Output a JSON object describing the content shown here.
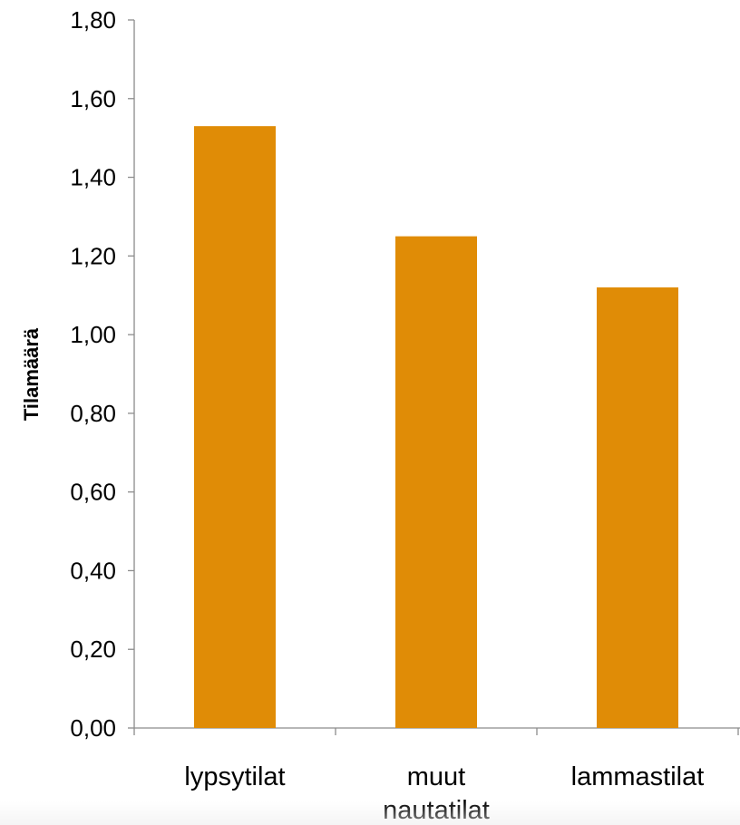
{
  "chart_data": {
    "type": "bar",
    "ylabel": "Tilamäärä",
    "xlabel": "",
    "categories": [
      "lypsytilat",
      "muut nautatilat",
      "lammastilat"
    ],
    "category_lines": [
      [
        "lypsytilat"
      ],
      [
        "muut",
        "nautatilat"
      ],
      [
        "lammastilat"
      ]
    ],
    "values": [
      1.53,
      1.25,
      1.12
    ],
    "ylim": [
      0,
      1.8
    ],
    "yticks": [
      0.0,
      0.2,
      0.4,
      0.6,
      0.8,
      1.0,
      1.2,
      1.4,
      1.6,
      1.8
    ],
    "ytick_labels": [
      "0,00",
      "0,20",
      "0,40",
      "0,60",
      "0,80",
      "1,00",
      "1,20",
      "1,40",
      "1,60",
      "1,80"
    ],
    "bar_color": "#E08C06",
    "grid": false,
    "legend": "none"
  }
}
